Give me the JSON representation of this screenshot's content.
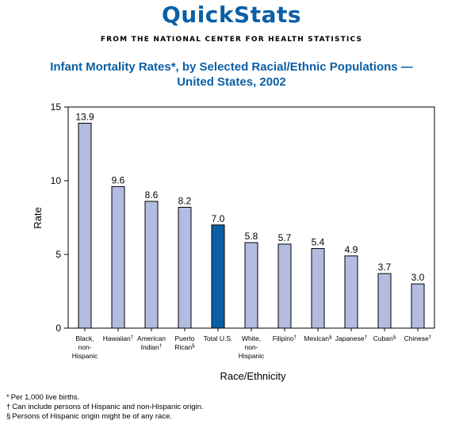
{
  "header": {
    "brand": "QuickStats",
    "tagline": "FROM THE NATIONAL CENTER FOR HEALTH STATISTICS",
    "title_line1": "Infant Mortality Rates*, by Selected Racial/Ethnic Populations —",
    "title_line2": "United States, 2002"
  },
  "colors": {
    "accent": "#0b5fa5",
    "bar_default": "#b3bce0",
    "bar_highlight": "#0b5fa5"
  },
  "chart_data": {
    "type": "bar",
    "xlabel": "Race/Ethnicity",
    "ylabel": "Rate",
    "ylim": [
      0,
      15
    ],
    "yticks": [
      0,
      5,
      10,
      15
    ],
    "grid": false,
    "categories": [
      {
        "lines": [
          "Black,",
          "non-",
          "Hispanic"
        ],
        "mark": ""
      },
      {
        "lines": [
          "Hawaiian"
        ],
        "mark": "†"
      },
      {
        "lines": [
          "American",
          "Indian"
        ],
        "mark": "†"
      },
      {
        "lines": [
          "Puerto",
          "Rican"
        ],
        "mark": "§"
      },
      {
        "lines": [
          "Total U.S."
        ],
        "mark": ""
      },
      {
        "lines": [
          "White,",
          "non-",
          "Hispanic"
        ],
        "mark": ""
      },
      {
        "lines": [
          "Filipino"
        ],
        "mark": "†"
      },
      {
        "lines": [
          "Mexican"
        ],
        "mark": "§"
      },
      {
        "lines": [
          "Japanese"
        ],
        "mark": "†"
      },
      {
        "lines": [
          "Cuban"
        ],
        "mark": "§"
      },
      {
        "lines": [
          "Chinese"
        ],
        "mark": "†"
      }
    ],
    "values": [
      13.9,
      9.6,
      8.6,
      8.2,
      7.0,
      5.8,
      5.7,
      5.4,
      4.9,
      3.7,
      3.0
    ],
    "value_labels": [
      "13.9",
      "9.6",
      "8.6",
      "8.2",
      "7.0",
      "5.8",
      "5.7",
      "5.4",
      "4.9",
      "3.7",
      "3.0"
    ],
    "highlight_index": 4
  },
  "footnotes": [
    {
      "mark": "*",
      "text": "Per 1,000 live births."
    },
    {
      "mark": "†",
      "text": "Can include persons of Hispanic and non-Hispanic origin."
    },
    {
      "mark": "§",
      "text": "Persons of Hispanic origin might be of any race."
    }
  ]
}
